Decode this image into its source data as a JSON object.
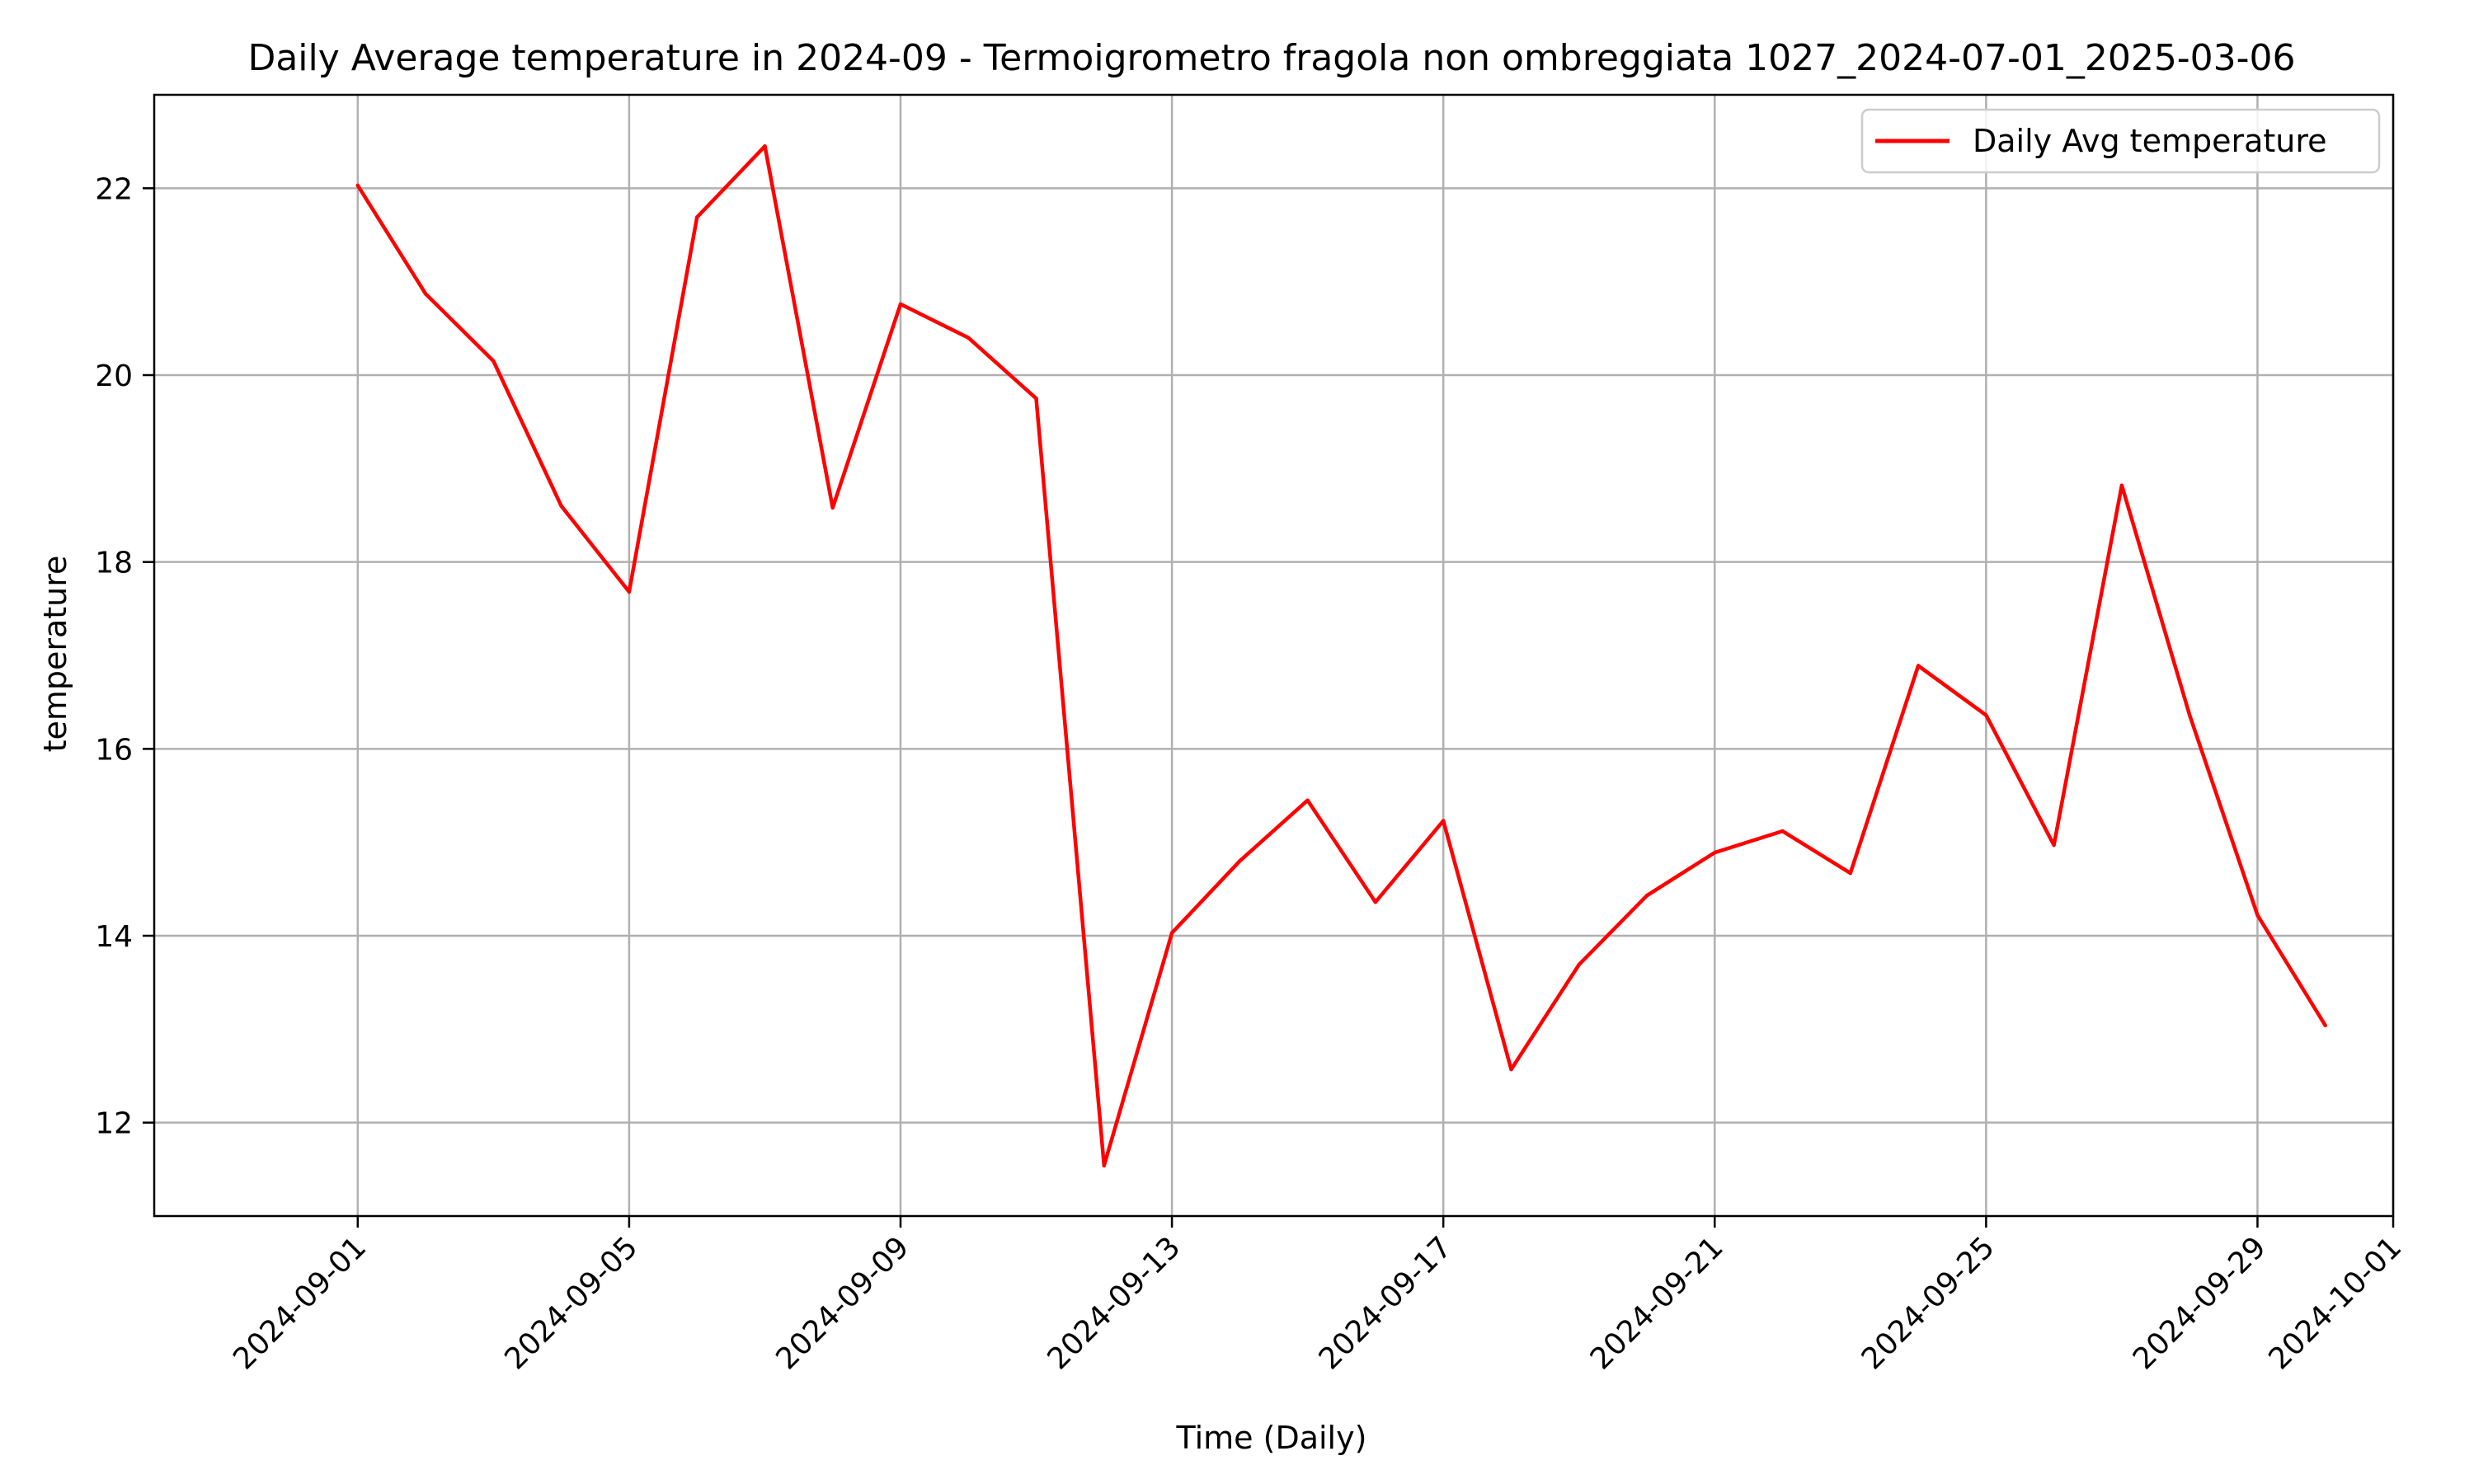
{
  "chart_data": {
    "type": "line",
    "title": "Daily Average temperature in 2024-09 - Termoigrometro fragola non ombreggiata 1027_2024-07-01_2025-03-06",
    "xlabel": "Time (Daily)",
    "ylabel": "temperature",
    "xlim": [
      "2024-08-29",
      "2024-10-01"
    ],
    "ylim": [
      11.0,
      23.0
    ],
    "x_ticks": [
      "2024-09-01",
      "2024-09-05",
      "2024-09-09",
      "2024-09-13",
      "2024-09-17",
      "2024-09-21",
      "2024-09-25",
      "2024-09-29",
      "2024-10-01"
    ],
    "y_ticks": [
      "12",
      "14",
      "16",
      "18",
      "20",
      "22"
    ],
    "grid": true,
    "legend_position": "top-right",
    "series": [
      {
        "name": "Daily Avg temperature",
        "color": "#ff0000",
        "x": [
          "2024-09-01",
          "2024-09-02",
          "2024-09-03",
          "2024-09-04",
          "2024-09-05",
          "2024-09-06",
          "2024-09-07",
          "2024-09-08",
          "2024-09-09",
          "2024-09-10",
          "2024-09-11",
          "2024-09-12",
          "2024-09-13",
          "2024-09-14",
          "2024-09-15",
          "2024-09-16",
          "2024-09-17",
          "2024-09-18",
          "2024-09-19",
          "2024-09-20",
          "2024-09-21",
          "2024-09-22",
          "2024-09-23",
          "2024-09-24",
          "2024-09-25",
          "2024-09-26",
          "2024-09-27",
          "2024-09-28",
          "2024-09-29",
          "2024-09-30"
        ],
        "values": [
          22.03,
          20.87,
          20.15,
          18.6,
          17.68,
          21.69,
          22.45,
          18.58,
          20.76,
          20.4,
          19.75,
          11.54,
          14.03,
          14.8,
          15.45,
          14.36,
          15.23,
          12.57,
          13.69,
          14.43,
          14.89,
          15.12,
          14.67,
          16.89,
          16.36,
          14.97,
          18.82,
          16.36,
          14.22,
          13.04
        ]
      }
    ]
  }
}
